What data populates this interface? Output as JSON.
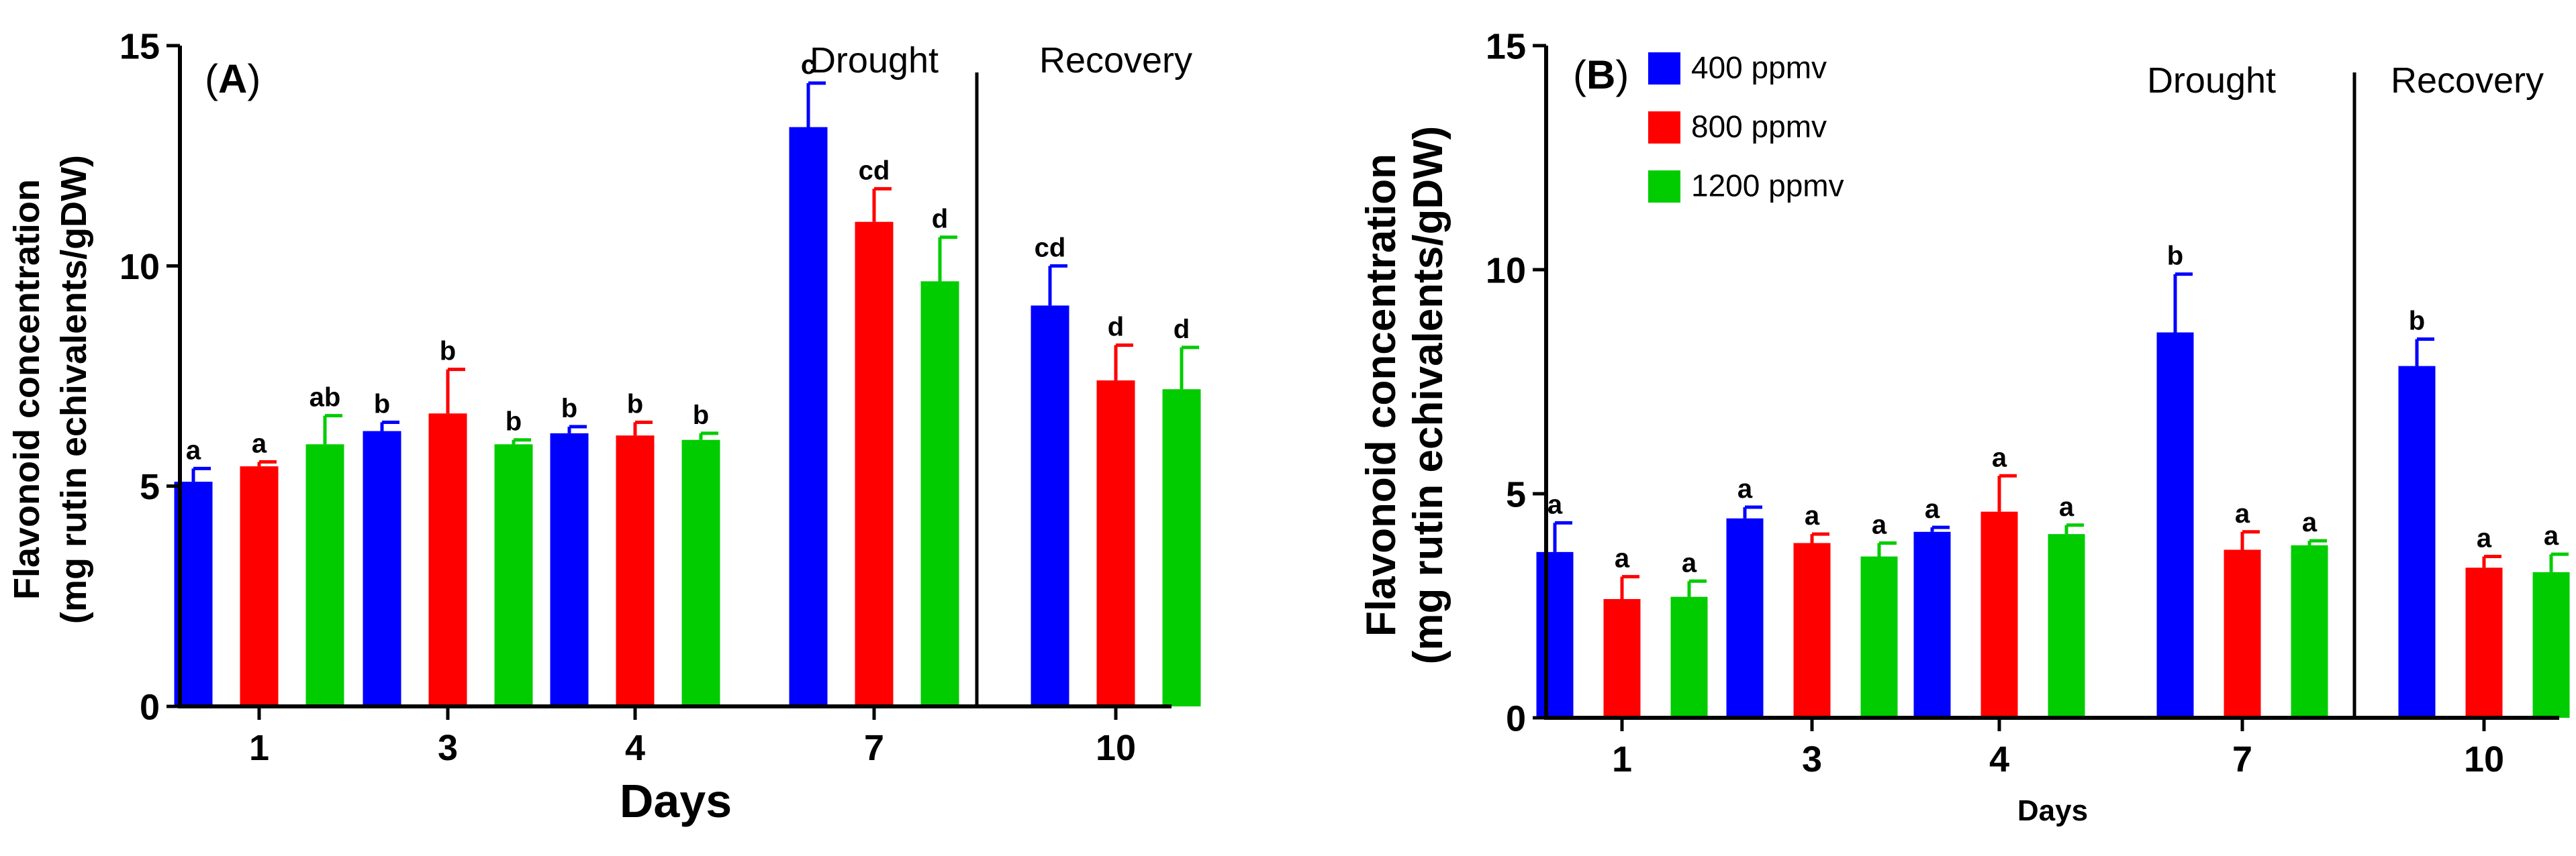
{
  "colors": {
    "c400": "#0000ff",
    "c800": "#ff0000",
    "c1200": "#00cc00",
    "axis": "#000000"
  },
  "chart_data": [
    {
      "type": "bar",
      "panel_label_open": "(",
      "panel_label_letter": "A",
      "panel_label_close": ")",
      "xlabel": "Days",
      "ylabel_line1": "Flavonoid concentration",
      "ylabel_line2": "(mg rutin echivalents/gDW)",
      "ylim": [
        0,
        15
      ],
      "yticks": [
        "0",
        "5",
        "10",
        "15"
      ],
      "categories": [
        "1",
        "3",
        "4",
        "7",
        "10"
      ],
      "phase_labels": [
        "Drought",
        "Recovery"
      ],
      "series": [
        {
          "name": "400 ppmv",
          "color": "#0000ff",
          "values": [
            5.1,
            6.25,
            6.2,
            13.15,
            9.1
          ],
          "errors": [
            0.3,
            0.2,
            0.15,
            1.0,
            0.9
          ],
          "letters": [
            "a",
            "b",
            "b",
            "c",
            "cd"
          ]
        },
        {
          "name": "800 ppmv",
          "color": "#ff0000",
          "values": [
            5.45,
            6.65,
            6.15,
            11.0,
            7.4
          ],
          "errors": [
            0.1,
            1.0,
            0.3,
            0.75,
            0.8
          ],
          "letters": [
            "a",
            "b",
            "b",
            "cd",
            "d"
          ]
        },
        {
          "name": "1200 ppmv",
          "color": "#00cc00",
          "values": [
            5.95,
            5.95,
            6.05,
            9.65,
            7.2
          ],
          "errors": [
            0.65,
            0.1,
            0.15,
            1.0,
            0.95
          ],
          "letters": [
            "ab",
            "b",
            "b",
            "d",
            "d"
          ]
        }
      ]
    },
    {
      "type": "bar",
      "panel_label_open": "(",
      "panel_label_letter": "B",
      "panel_label_close": ")",
      "xlabel": "Days",
      "ylabel_line1": "Flavonoid concentration",
      "ylabel_line2": "(mg rutin echivalents/gDW)",
      "ylim": [
        0,
        15
      ],
      "yticks": [
        "0",
        "5",
        "10",
        "15"
      ],
      "categories": [
        "1",
        "3",
        "4",
        "7",
        "10"
      ],
      "phase_labels": [
        "Drought",
        "Recovery"
      ],
      "legend": [
        "400 ppmv",
        "800 ppmv",
        "1200 ppmv"
      ],
      "series": [
        {
          "name": "400 ppmv",
          "color": "#0000ff",
          "values": [
            3.7,
            4.45,
            4.15,
            8.6,
            7.85
          ],
          "errors": [
            0.65,
            0.25,
            0.1,
            1.3,
            0.6
          ],
          "letters": [
            "a",
            "a",
            "a",
            "b",
            "b"
          ]
        },
        {
          "name": "800 ppmv",
          "color": "#ff0000",
          "values": [
            2.65,
            3.9,
            4.6,
            3.75,
            3.35
          ],
          "errors": [
            0.5,
            0.2,
            0.8,
            0.4,
            0.25
          ],
          "letters": [
            "a",
            "a",
            "a",
            "a",
            "a"
          ]
        },
        {
          "name": "1200 ppmv",
          "color": "#00cc00",
          "values": [
            2.7,
            3.6,
            4.1,
            3.85,
            3.25
          ],
          "errors": [
            0.35,
            0.3,
            0.2,
            0.1,
            0.4
          ],
          "letters": [
            "a",
            "a",
            "a",
            "a",
            "a"
          ]
        }
      ]
    }
  ]
}
